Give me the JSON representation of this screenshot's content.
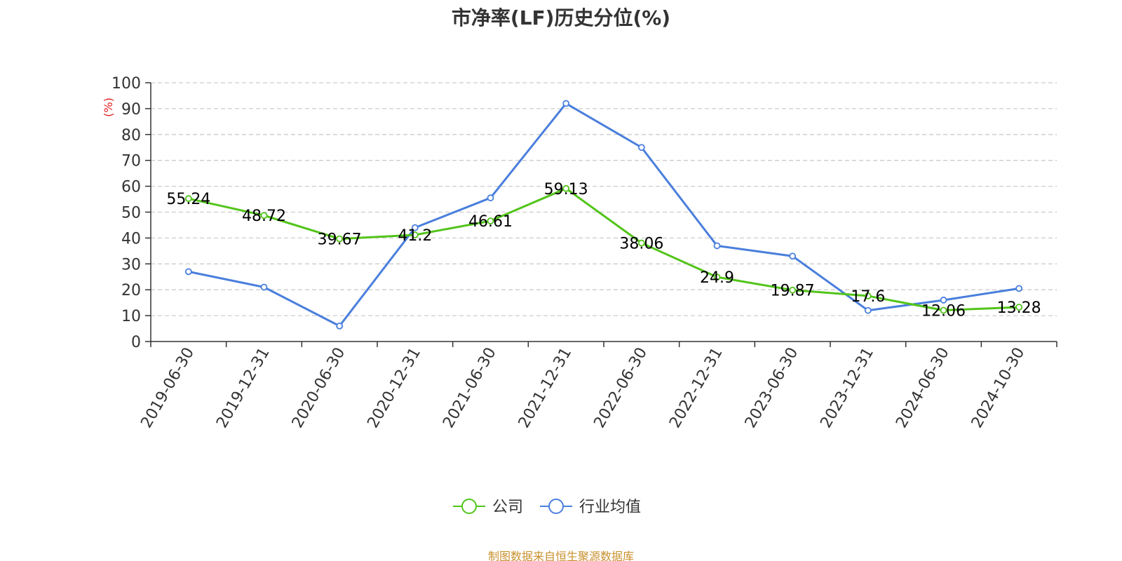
{
  "chart_data": {
    "type": "line",
    "title": "市净率(LF)历史分位(%)",
    "ylabel": "(%)",
    "xlabel": "",
    "categories": [
      "2019-06-30",
      "2019-12-31",
      "2020-06-30",
      "2020-12-31",
      "2021-06-30",
      "2021-12-31",
      "2022-06-30",
      "2022-12-31",
      "2023-06-30",
      "2023-12-31",
      "2024-06-30",
      "2024-10-30"
    ],
    "ylim": [
      0,
      100
    ],
    "yticks": [
      0,
      10,
      20,
      30,
      40,
      50,
      60,
      70,
      80,
      90,
      100
    ],
    "grid": true,
    "legend_position": "bottom-center",
    "series": [
      {
        "name": "公司",
        "color": "#52c41a",
        "show_labels": true,
        "values": [
          55.24,
          48.72,
          39.67,
          41.2,
          46.61,
          59.13,
          38.06,
          24.9,
          19.87,
          17.6,
          12.06,
          13.28
        ]
      },
      {
        "name": "行业均值",
        "color": "#4a7fdc",
        "show_labels": false,
        "values": [
          27,
          21,
          6,
          44,
          55.5,
          92,
          75,
          37,
          33,
          12,
          16,
          20.5
        ]
      }
    ]
  },
  "footer": {
    "source": "制图数据来自恒生聚源数据库",
    "color": "#c8912e"
  }
}
